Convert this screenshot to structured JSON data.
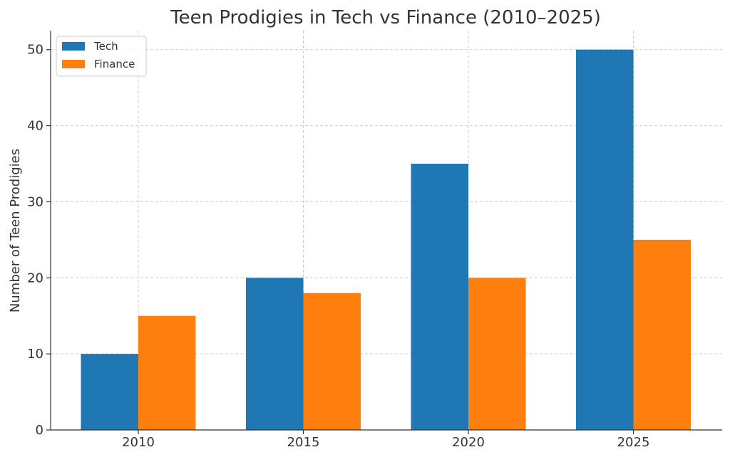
{
  "chart_data": {
    "type": "bar",
    "title": "Teen Prodigies in Tech vs Finance (2010–2025)",
    "xlabel": "",
    "ylabel": "Number of Teen Prodigies",
    "categories": [
      "2010",
      "2015",
      "2020",
      "2025"
    ],
    "series": [
      {
        "name": "Tech",
        "color": "#1f77b4",
        "values": [
          10,
          20,
          35,
          50
        ]
      },
      {
        "name": "Finance",
        "color": "#ff7f0e",
        "values": [
          15,
          18,
          20,
          25
        ]
      }
    ],
    "ylim": [
      0,
      52.5
    ],
    "yticks": [
      0,
      10,
      20,
      30,
      40,
      50
    ],
    "grid": true,
    "legend_position": "top-left"
  }
}
